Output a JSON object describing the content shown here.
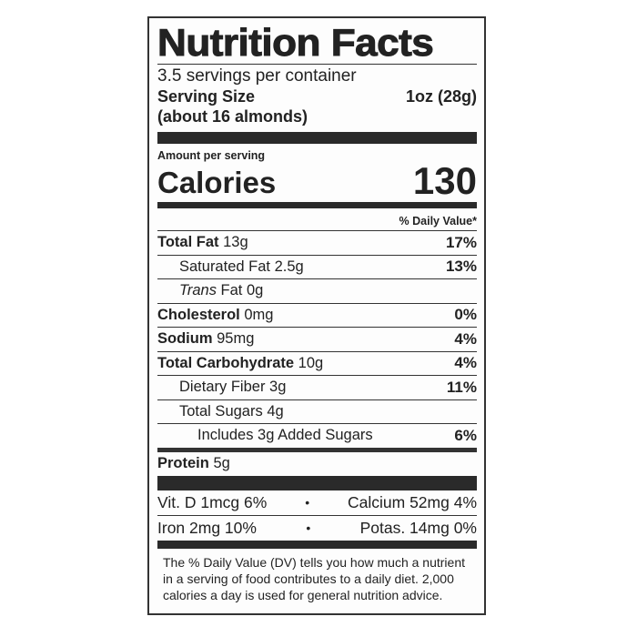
{
  "title": "Nutrition Facts",
  "servings_per_container": "3.5 servings per container",
  "serving_size": {
    "label": "Serving Size",
    "value": "1oz (28g)",
    "note": "(about 16 almonds)"
  },
  "amount_per_serving": "Amount per serving",
  "calories": {
    "label": "Calories",
    "value": "130"
  },
  "daily_value_header": "% Daily Value*",
  "nutrients": [
    {
      "name": "Total Fat",
      "amount": "13g",
      "dv": "17%"
    },
    {
      "name": "Saturated Fat",
      "amount": "2.5g",
      "dv": "13%"
    },
    {
      "name": "Trans",
      "name2": "Fat",
      "amount": "0g",
      "dv": ""
    },
    {
      "name": "Cholesterol",
      "amount": "0mg",
      "dv": "0%"
    },
    {
      "name": "Sodium",
      "amount": "95mg",
      "dv": "4%"
    },
    {
      "name": "Total Carbohydrate",
      "amount": "10g",
      "dv": "4%"
    },
    {
      "name": "Dietary Fiber",
      "amount": "3g",
      "dv": "11%"
    },
    {
      "name": "Total Sugars",
      "amount": "4g",
      "dv": ""
    },
    {
      "name": "Includes 3g Added Sugars",
      "amount": "",
      "dv": "6%"
    },
    {
      "name": "Protein",
      "amount": "5g",
      "dv": ""
    }
  ],
  "minerals": [
    {
      "left": "Vit. D 1mcg 6%",
      "sep": "•",
      "right": "Calcium 52mg 4%"
    },
    {
      "left": "Iron 2mg 10%",
      "sep": "•",
      "right": "Potas. 14mg 0%"
    }
  ],
  "footnote": "The % Daily Value (DV) tells you how much a nutrient in a serving of food contributes to a daily diet. 2,000 calories a day is used for general nutrition advice."
}
